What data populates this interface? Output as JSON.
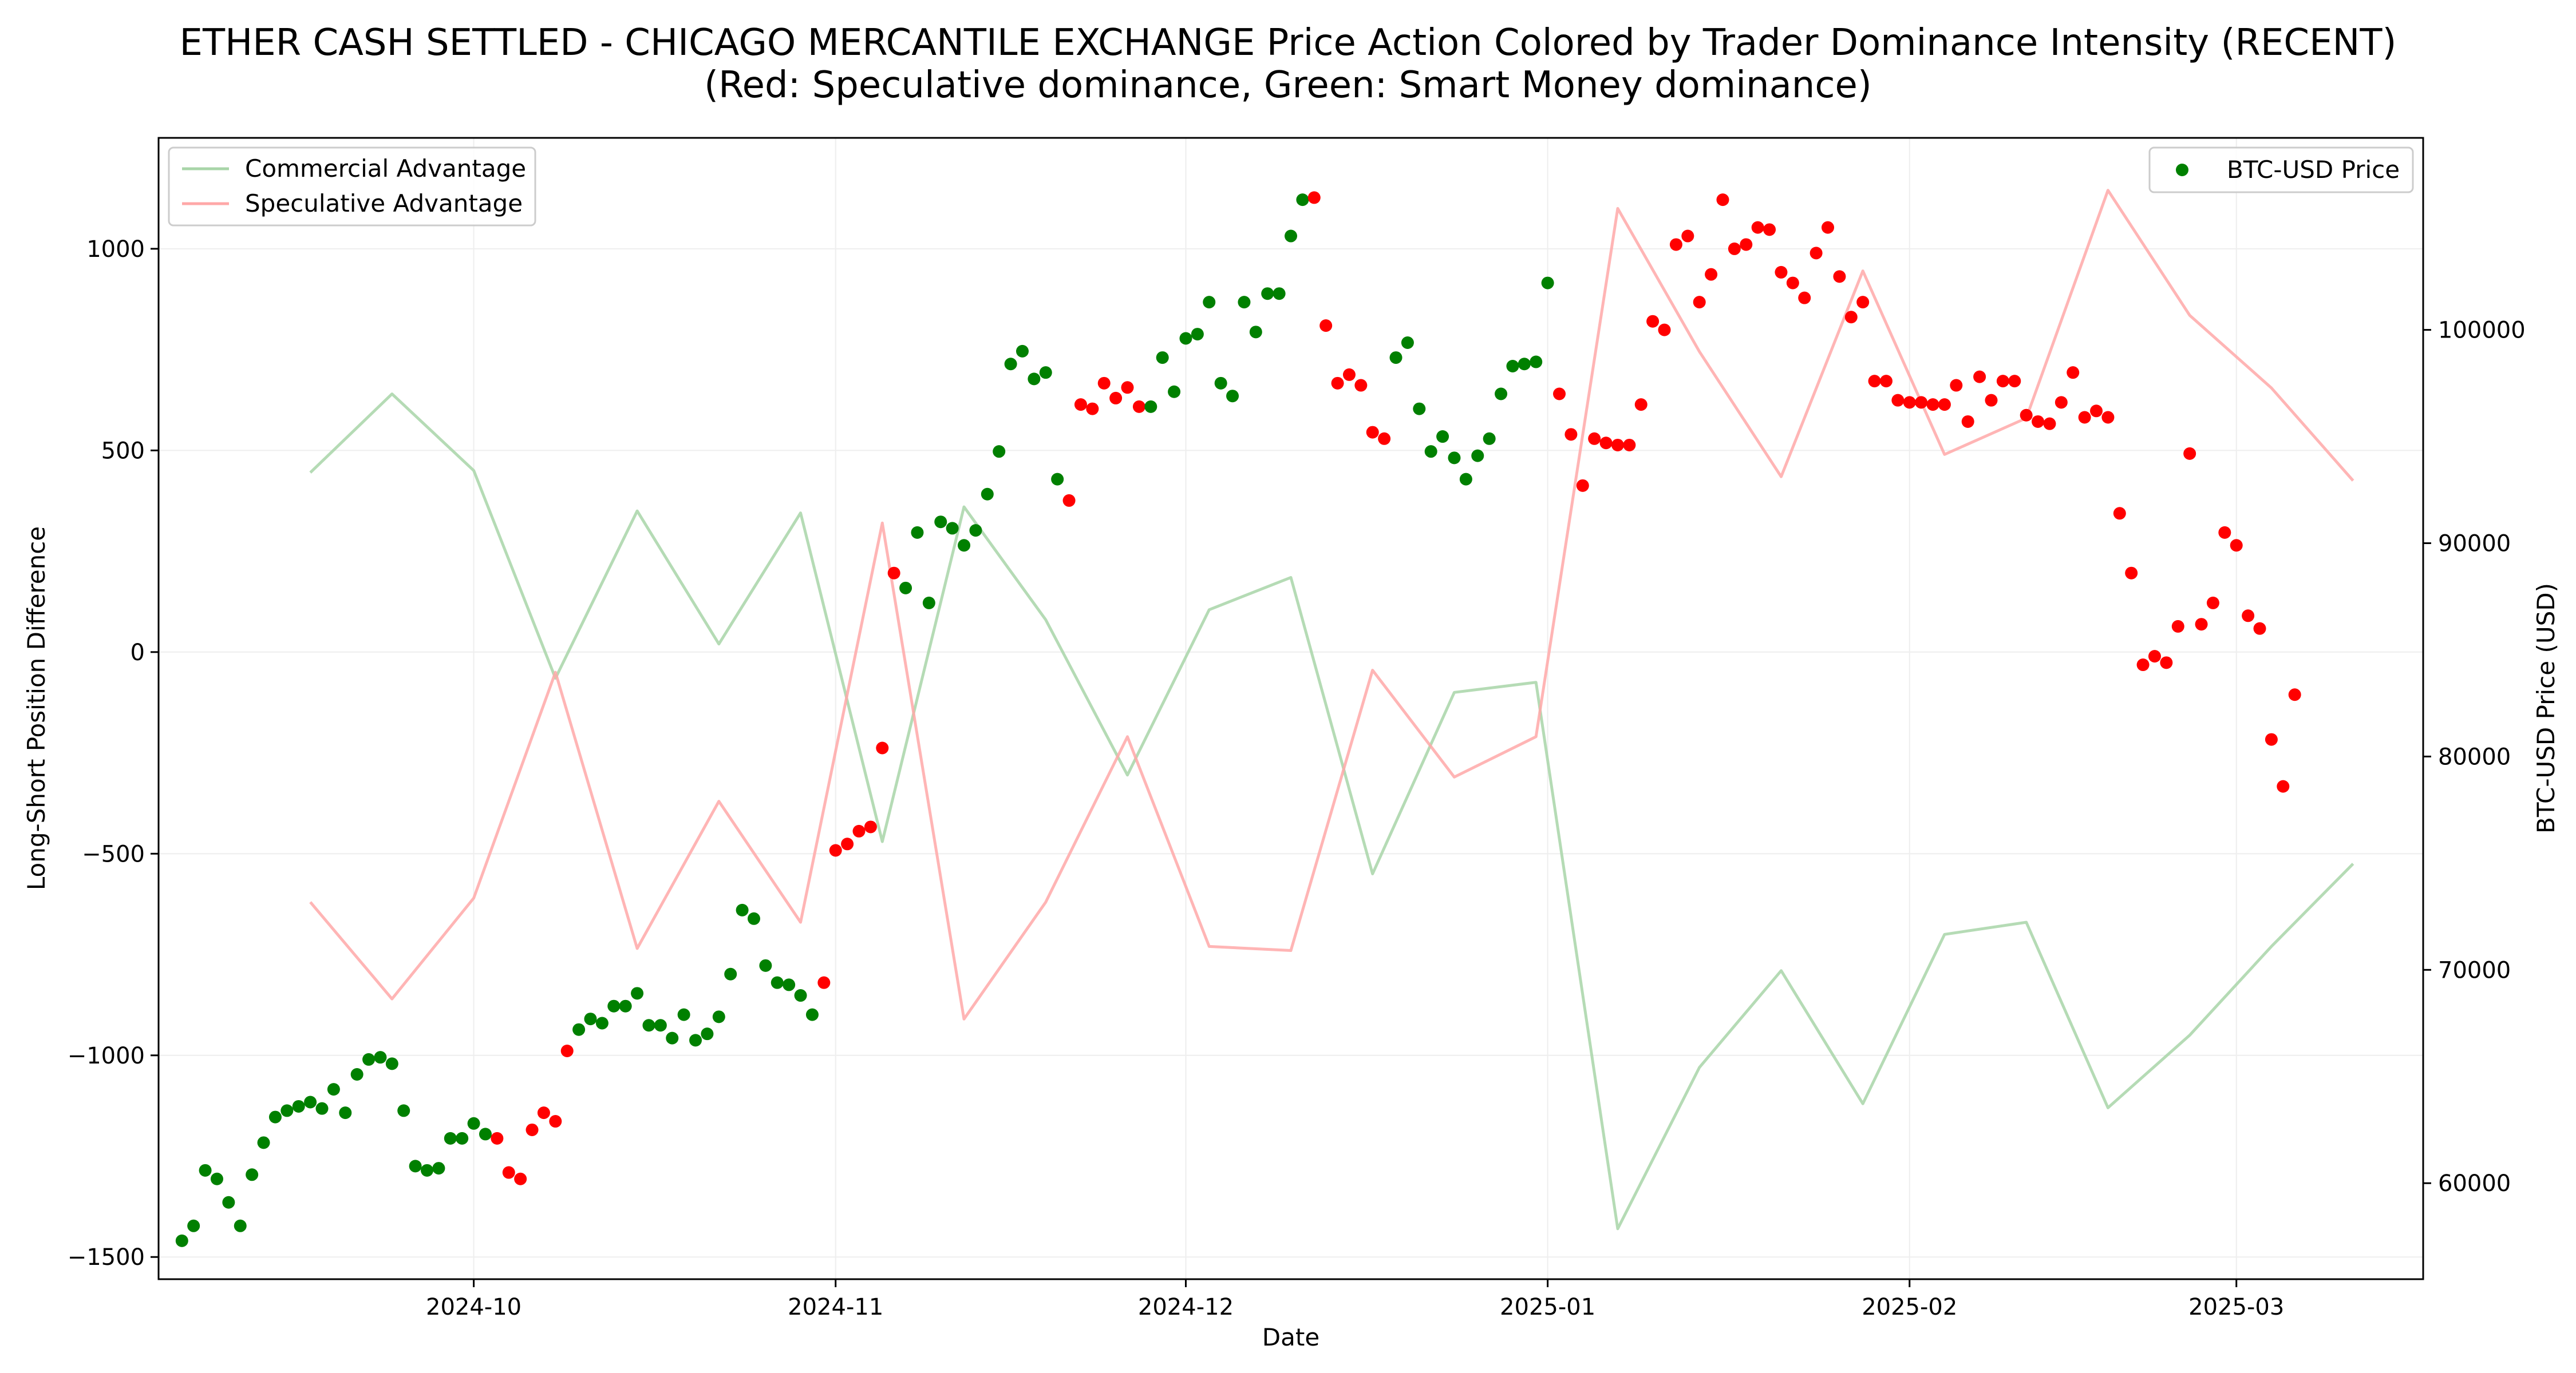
{
  "chart_data": {
    "type": "line+scatter",
    "title": "ETHER CASH SETTLED - CHICAGO MERCANTILE EXCHANGE Price Action Colored by Trader Dominance Intensity (RECENT)",
    "subtitle": "(Red: Speculative dominance, Green: Smart Money dominance)",
    "xlabel": "Date",
    "ylabel_left": "Long-Short Position Difference",
    "ylabel_right": "BTC-USD Price (USD)",
    "x_range": [
      "2024-09-04",
      "2025-03-17"
    ],
    "y_left_range": [
      -1555,
      1275
    ],
    "y_right_range": [
      55500,
      109000
    ],
    "x_ticks": [
      {
        "date": "2024-10-01",
        "label": "2024-10"
      },
      {
        "date": "2024-11-01",
        "label": "2024-11"
      },
      {
        "date": "2024-12-01",
        "label": "2024-12"
      },
      {
        "date": "2025-01-01",
        "label": "2025-01"
      },
      {
        "date": "2025-02-01",
        "label": "2025-02"
      },
      {
        "date": "2025-03-01",
        "label": "2025-03"
      }
    ],
    "y_left_ticks": [
      -1500,
      -1000,
      -500,
      0,
      500,
      1000
    ],
    "y_left_tick_labels": [
      "−1500",
      "−1000",
      "−500",
      "0",
      "500",
      "1000"
    ],
    "y_right_ticks": [
      60000,
      70000,
      80000,
      90000,
      100000
    ],
    "y_right_tick_labels": [
      "60000",
      "70000",
      "80000",
      "90000",
      "100000"
    ],
    "grid": true,
    "legend_left": {
      "placement": "top-left",
      "entries": [
        {
          "name": "Commercial Advantage",
          "color": "#a8d5a8"
        },
        {
          "name": "Speculative Advantage",
          "color": "#ffa8a8"
        }
      ]
    },
    "legend_right": {
      "placement": "top-right",
      "entries": [
        {
          "name": "BTC-USD Price",
          "color": "#008000"
        }
      ]
    },
    "colors": {
      "commercial": "#a8d5a8",
      "speculative": "#ffa8a8",
      "smart_money": "#008000",
      "speculative_dot": "#ff0000"
    },
    "lines": [
      {
        "name": "Commercial Advantage",
        "axis": "left",
        "points": [
          [
            "2024-09-17",
            445
          ],
          [
            "2024-09-24",
            640
          ],
          [
            "2024-10-01",
            450
          ],
          [
            "2024-10-08",
            -65
          ],
          [
            "2024-10-15",
            350
          ],
          [
            "2024-10-22",
            20
          ],
          [
            "2024-10-29",
            345
          ],
          [
            "2024-11-05",
            -470
          ],
          [
            "2024-11-12",
            360
          ],
          [
            "2024-11-19",
            80
          ],
          [
            "2024-11-26",
            -305
          ],
          [
            "2024-12-03",
            105
          ],
          [
            "2024-12-10",
            185
          ],
          [
            "2024-12-17",
            -550
          ],
          [
            "2024-12-24",
            -100
          ],
          [
            "2024-12-31",
            -75
          ],
          [
            "2025-01-07",
            -1430
          ],
          [
            "2025-01-14",
            -1030
          ],
          [
            "2025-01-21",
            -790
          ],
          [
            "2025-01-28",
            -1120
          ],
          [
            "2025-02-04",
            -700
          ],
          [
            "2025-02-11",
            -670
          ],
          [
            "2025-02-18",
            -1130
          ],
          [
            "2025-02-25",
            -950
          ],
          [
            "2025-03-04",
            -730
          ],
          [
            "2025-03-11",
            -525
          ]
        ]
      },
      {
        "name": "Speculative Advantage",
        "axis": "left",
        "points": [
          [
            "2024-09-17",
            -620
          ],
          [
            "2024-09-24",
            -860
          ],
          [
            "2024-10-01",
            -610
          ],
          [
            "2024-10-08",
            -50
          ],
          [
            "2024-10-15",
            -735
          ],
          [
            "2024-10-22",
            -370
          ],
          [
            "2024-10-29",
            -670
          ],
          [
            "2024-11-05",
            320
          ],
          [
            "2024-11-12",
            -910
          ],
          [
            "2024-11-19",
            -620
          ],
          [
            "2024-11-26",
            -210
          ],
          [
            "2024-12-03",
            -730
          ],
          [
            "2024-12-10",
            -740
          ],
          [
            "2024-12-17",
            -45
          ],
          [
            "2024-12-24",
            -310
          ],
          [
            "2024-12-31",
            -210
          ],
          [
            "2025-01-07",
            1100
          ],
          [
            "2025-01-14",
            745
          ],
          [
            "2025-01-21",
            435
          ],
          [
            "2025-01-28",
            945
          ],
          [
            "2025-02-04",
            490
          ],
          [
            "2025-02-11",
            580
          ],
          [
            "2025-02-18",
            1145
          ],
          [
            "2025-02-25",
            835
          ],
          [
            "2025-03-04",
            655
          ],
          [
            "2025-03-11",
            425
          ]
        ]
      }
    ],
    "scatter": {
      "name": "BTC-USD Price",
      "axis": "right",
      "start_date": "2024-09-06",
      "points": [
        [
          "g",
          57300
        ],
        [
          "g",
          58000
        ],
        [
          "g",
          60600
        ],
        [
          "g",
          60200
        ],
        [
          "g",
          59100
        ],
        [
          "g",
          58000
        ],
        [
          "g",
          60400
        ],
        [
          "g",
          61900
        ],
        [
          "g",
          63100
        ],
        [
          "g",
          63400
        ],
        [
          "g",
          63600
        ],
        [
          "g",
          63800
        ],
        [
          "g",
          63500
        ],
        [
          "g",
          64400
        ],
        [
          "g",
          63300
        ],
        [
          "g",
          65100
        ],
        [
          "g",
          65800
        ],
        [
          "g",
          65900
        ],
        [
          "g",
          65600
        ],
        [
          "g",
          63400
        ],
        [
          "g",
          60800
        ],
        [
          "g",
          60600
        ],
        [
          "g",
          60700
        ],
        [
          "g",
          62100
        ],
        [
          "g",
          62100
        ],
        [
          "g",
          62800
        ],
        [
          "g",
          62300
        ],
        [
          "r",
          62100
        ],
        [
          "r",
          60500
        ],
        [
          "r",
          60200
        ],
        [
          "r",
          62500
        ],
        [
          "r",
          63300
        ],
        [
          "r",
          62900
        ],
        [
          "r",
          66200
        ],
        [
          "g",
          67200
        ],
        [
          "g",
          67700
        ],
        [
          "g",
          67500
        ],
        [
          "g",
          68300
        ],
        [
          "g",
          68300
        ],
        [
          "g",
          68900
        ],
        [
          "g",
          67400
        ],
        [
          "g",
          67400
        ],
        [
          "g",
          66800
        ],
        [
          "g",
          67900
        ],
        [
          "g",
          66700
        ],
        [
          "g",
          67000
        ],
        [
          "g",
          67800
        ],
        [
          "g",
          69800
        ],
        [
          "g",
          72800
        ],
        [
          "g",
          72400
        ],
        [
          "g",
          70200
        ],
        [
          "g",
          69400
        ],
        [
          "g",
          69300
        ],
        [
          "g",
          68800
        ],
        [
          "g",
          67900
        ],
        [
          "r",
          69400
        ],
        [
          "r",
          75600
        ],
        [
          "r",
          75900
        ],
        [
          "r",
          76500
        ],
        [
          "r",
          76700
        ],
        [
          "r",
          80400
        ],
        [
          "r",
          88600
        ],
        [
          "g",
          87900
        ],
        [
          "g",
          90500
        ],
        [
          "g",
          87200
        ],
        [
          "g",
          91000
        ],
        [
          "g",
          90700
        ],
        [
          "g",
          89900
        ],
        [
          "g",
          90600
        ],
        [
          "g",
          92300
        ],
        [
          "g",
          94300
        ],
        [
          "g",
          98400
        ],
        [
          "g",
          99000
        ],
        [
          "g",
          97700
        ],
        [
          "g",
          98000
        ],
        [
          "g",
          93000
        ],
        [
          "r",
          92000
        ],
        [
          "r",
          96500
        ],
        [
          "r",
          96300
        ],
        [
          "r",
          97500
        ],
        [
          "r",
          96800
        ],
        [
          "r",
          97300
        ],
        [
          "r",
          96400
        ],
        [
          "g",
          96400
        ],
        [
          "g",
          98700
        ],
        [
          "g",
          97100
        ],
        [
          "g",
          99600
        ],
        [
          "g",
          99800
        ],
        [
          "g",
          101300
        ],
        [
          "g",
          97500
        ],
        [
          "g",
          96900
        ],
        [
          "g",
          101300
        ],
        [
          "g",
          99900
        ],
        [
          "g",
          101700
        ],
        [
          "g",
          101700
        ],
        [
          "g",
          104400
        ],
        [
          "g",
          106100
        ],
        [
          "r",
          106200
        ],
        [
          "r",
          100200
        ],
        [
          "r",
          97500
        ],
        [
          "r",
          97900
        ],
        [
          "r",
          97400
        ],
        [
          "r",
          95200
        ],
        [
          "r",
          94900
        ],
        [
          "g",
          98700
        ],
        [
          "g",
          99400
        ],
        [
          "g",
          96300
        ],
        [
          "g",
          94300
        ],
        [
          "g",
          95000
        ],
        [
          "g",
          94000
        ],
        [
          "g",
          93000
        ],
        [
          "g",
          94100
        ],
        [
          "g",
          94900
        ],
        [
          "g",
          97000
        ],
        [
          "g",
          98300
        ],
        [
          "g",
          98400
        ],
        [
          "g",
          98500
        ],
        [
          "g",
          102200
        ],
        [
          "r",
          97000
        ],
        [
          "r",
          95100
        ],
        [
          "r",
          92700
        ],
        [
          "r",
          94900
        ],
        [
          "r",
          94700
        ],
        [
          "r",
          94600
        ],
        [
          "r",
          94600
        ],
        [
          "r",
          96500
        ],
        [
          "r",
          100400
        ],
        [
          "r",
          100000
        ],
        [
          "r",
          104000
        ],
        [
          "r",
          104400
        ],
        [
          "r",
          101300
        ],
        [
          "r",
          102600
        ],
        [
          "r",
          106100
        ],
        [
          "r",
          103800
        ],
        [
          "r",
          104000
        ],
        [
          "r",
          104800
        ],
        [
          "r",
          104700
        ],
        [
          "r",
          102700
        ],
        [
          "r",
          102200
        ],
        [
          "r",
          101500
        ],
        [
          "r",
          103600
        ],
        [
          "r",
          104800
        ],
        [
          "r",
          102500
        ],
        [
          "r",
          100600
        ],
        [
          "r",
          101300
        ],
        [
          "r",
          97600
        ],
        [
          "r",
          97600
        ],
        [
          "r",
          96700
        ],
        [
          "r",
          96600
        ],
        [
          "r",
          96600
        ],
        [
          "r",
          96500
        ],
        [
          "r",
          96500
        ],
        [
          "r",
          97400
        ],
        [
          "r",
          95700
        ],
        [
          "r",
          97800
        ],
        [
          "r",
          96700
        ],
        [
          "r",
          97600
        ],
        [
          "r",
          97600
        ],
        [
          "r",
          96000
        ],
        [
          "r",
          95700
        ],
        [
          "r",
          95600
        ],
        [
          "r",
          96600
        ],
        [
          "r",
          98000
        ],
        [
          "r",
          95900
        ],
        [
          "r",
          96200
        ],
        [
          "r",
          95900
        ],
        [
          "r",
          91400
        ],
        [
          "r",
          88600
        ],
        [
          "r",
          84300
        ],
        [
          "r",
          84700
        ],
        [
          "r",
          84400
        ],
        [
          "r",
          86100
        ],
        [
          "r",
          94200
        ],
        [
          "r",
          86200
        ],
        [
          "r",
          87200
        ],
        [
          "r",
          90500
        ],
        [
          "r",
          89900
        ],
        [
          "r",
          86600
        ],
        [
          "r",
          86000
        ],
        [
          "r",
          80800
        ],
        [
          "r",
          78600
        ],
        [
          "r",
          82900
        ]
      ]
    }
  }
}
